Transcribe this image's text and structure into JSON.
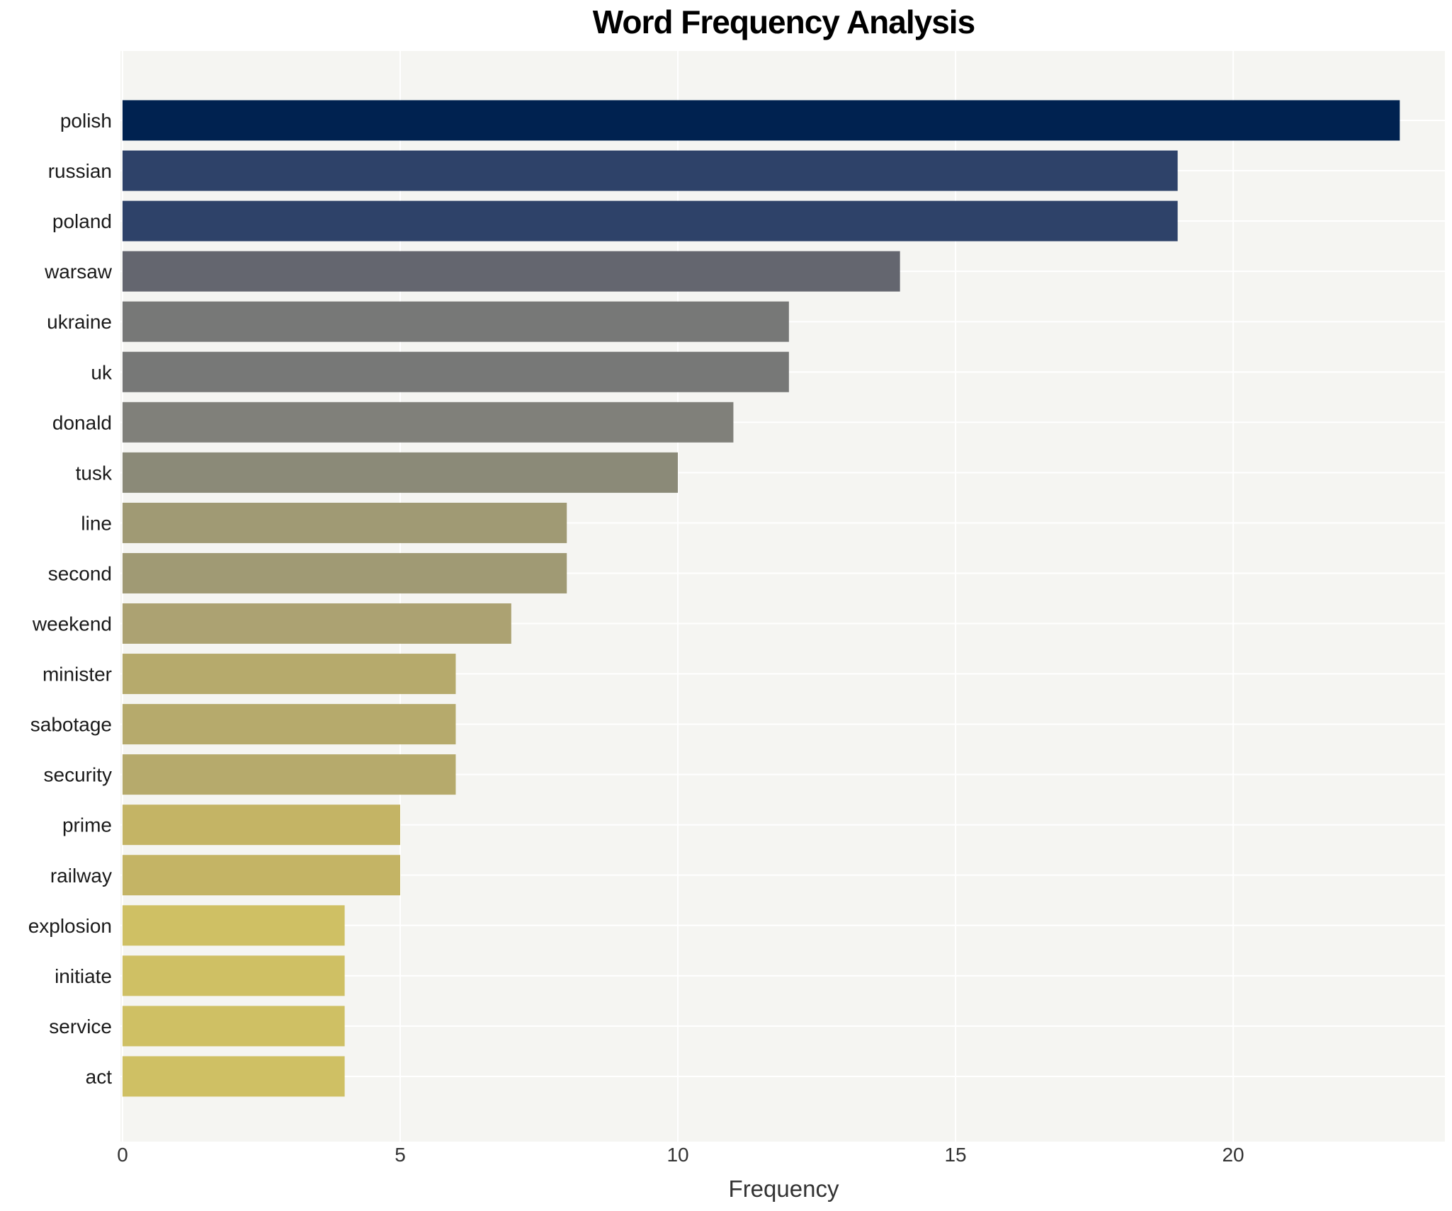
{
  "chart_data": {
    "type": "bar",
    "orientation": "horizontal",
    "title": "Word Frequency Analysis",
    "xlabel": "Frequency",
    "ylabel": "",
    "categories": [
      "polish",
      "russian",
      "poland",
      "warsaw",
      "ukraine",
      "uk",
      "donald",
      "tusk",
      "line",
      "second",
      "weekend",
      "minister",
      "sabotage",
      "security",
      "prime",
      "railway",
      "explosion",
      "initiate",
      "service",
      "act"
    ],
    "values": [
      23,
      19,
      19,
      14,
      12,
      12,
      11,
      10,
      8,
      8,
      7,
      6,
      6,
      6,
      5,
      5,
      4,
      4,
      4,
      4
    ],
    "bar_colors": [
      "#002250",
      "#2e4269",
      "#2e4269",
      "#64666f",
      "#777877",
      "#777877",
      "#80807a",
      "#8b8a78",
      "#a09a74",
      "#a09a74",
      "#aca272",
      "#b6aa6c",
      "#b6aa6c",
      "#b6aa6c",
      "#c4b465",
      "#c4b465",
      "#cfc064",
      "#cfc064",
      "#cfc064",
      "#cfc064"
    ],
    "xticks": [
      0,
      5,
      10,
      15,
      20
    ],
    "xlim": [
      0,
      23.8
    ],
    "grid": true,
    "legend": false,
    "colors": {
      "plot_background": "#f5f5f2",
      "grid_line": "#ffffff",
      "title_text": "#000000",
      "category_text": "#1a1a1a",
      "tick_text": "#333333",
      "axis_label_text": "#333333"
    }
  }
}
